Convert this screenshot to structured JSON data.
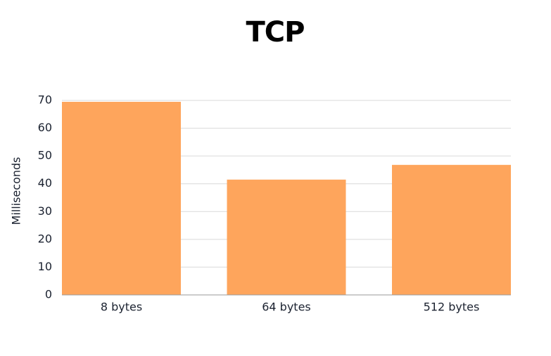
{
  "chart_data": {
    "type": "bar",
    "title": "TCP",
    "y_label": "Milliseconds",
    "categories": [
      "8 bytes",
      "64 bytes",
      "512 bytes"
    ],
    "values": [
      69.5,
      41.5,
      46.8
    ],
    "color": "#fea55c",
    "ylim": [
      0,
      70
    ],
    "yticks": [
      0,
      10,
      20,
      30,
      40,
      50,
      60,
      70
    ],
    "grid": true
  }
}
